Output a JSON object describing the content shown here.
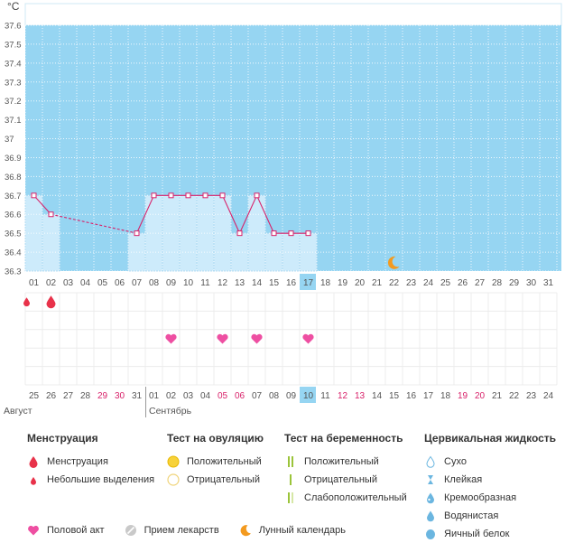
{
  "chart_data": {
    "type": "line",
    "unit_label": "°C",
    "ylim": [
      36.3,
      37.6
    ],
    "y_ticks": [
      "36.3",
      "36.4",
      "36.5",
      "36.6",
      "36.7",
      "36.8",
      "36.9",
      "37",
      "37.1",
      "37.2",
      "37.3",
      "37.4",
      "37.5",
      "37.6"
    ],
    "cycle_days": [
      "01",
      "02",
      "03",
      "04",
      "05",
      "06",
      "07",
      "08",
      "09",
      "10",
      "11",
      "12",
      "13",
      "14",
      "15",
      "16",
      "17",
      "18",
      "19",
      "20",
      "21",
      "22",
      "23",
      "24",
      "25",
      "26",
      "27",
      "28",
      "29",
      "30",
      "31"
    ],
    "temperatures": [
      36.7,
      36.6,
      null,
      null,
      null,
      null,
      36.5,
      36.7,
      36.7,
      36.7,
      36.7,
      36.7,
      36.5,
      36.7,
      36.5,
      36.5,
      36.5,
      null,
      null,
      null,
      null,
      null,
      null,
      null,
      null,
      null,
      null,
      null,
      null,
      null,
      null
    ],
    "current_day_index": 16,
    "moon_day_index": 21,
    "menstruation": [
      {
        "day_index": 0,
        "kind": "small"
      },
      {
        "day_index": 1,
        "kind": "full"
      }
    ],
    "intercourse_day_indexes": [
      8,
      11,
      13,
      16
    ],
    "dates": [
      "25",
      "26",
      "27",
      "28",
      "29",
      "30",
      "31",
      "01",
      "02",
      "03",
      "04",
      "05",
      "06",
      "07",
      "08",
      "09",
      "10",
      "11",
      "12",
      "13",
      "14",
      "15",
      "16",
      "17",
      "18",
      "19",
      "20",
      "21",
      "22",
      "23",
      "24"
    ],
    "weekend_date_indexes": [
      4,
      5,
      11,
      12,
      18,
      19,
      25,
      26
    ],
    "month_labels": [
      {
        "text": "Август",
        "day_index": 0
      },
      {
        "text": "Сентябрь",
        "day_index": 7
      }
    ],
    "colors": {
      "background": "#96d5f2",
      "bar": "#cdebfb",
      "bar_line": "#a8d8f2",
      "temp_line": "#d8216a",
      "grid": "#ffffff",
      "current_day": "#96d5f2",
      "weekend": "#d8216a",
      "heart": "#ee4fa2",
      "drop": "#e8324a",
      "moon": "#f39a1f"
    }
  },
  "legend": {
    "menstruation": {
      "title": "Менструация",
      "items": [
        "Менструация",
        "Небольшие выделения"
      ]
    },
    "ovulation_test": {
      "title": "Тест на овуляцию",
      "items": [
        "Положительный",
        "Отрицательный"
      ]
    },
    "pregnancy_test": {
      "title": "Тест на беременность",
      "items": [
        "Положительный",
        "Отрицательный",
        "Слабоположительный"
      ]
    },
    "cervical_fluid": {
      "title": "Цервикальная жидкость",
      "items": [
        "Сухо",
        "Клейкая",
        "Кремообразная",
        "Водянистая",
        "Яичный белок"
      ]
    },
    "bottom": [
      "Половой акт",
      "Прием лекарств",
      "Лунный календарь"
    ]
  }
}
